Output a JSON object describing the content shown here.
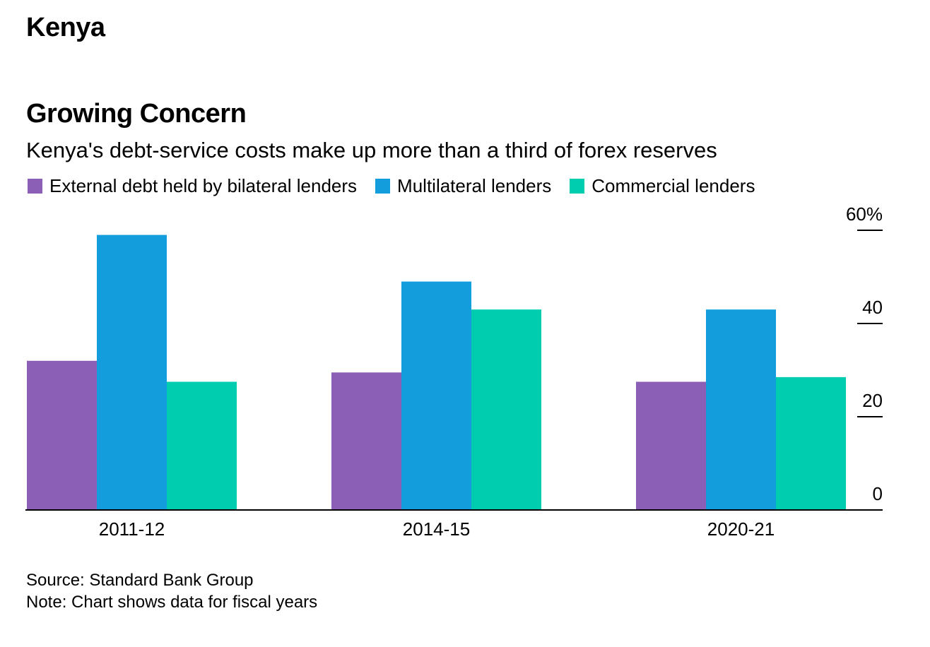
{
  "header": {
    "label": "Kenya"
  },
  "chart_data": {
    "type": "bar",
    "title": "Growing Concern",
    "subtitle": "Kenya's debt-service costs make up more than a third of forex reserves",
    "categories": [
      "2011-12",
      "2014-15",
      "2020-21"
    ],
    "series": [
      {
        "name": "External debt held by bilateral lenders",
        "color": "#8a5fb5",
        "values": [
          32,
          29.5,
          27.5
        ]
      },
      {
        "name": "Multilateral lenders",
        "color": "#149ddc",
        "values": [
          59,
          49,
          43
        ]
      },
      {
        "name": "Commercial lenders",
        "color": "#00cdb0",
        "values": [
          27.5,
          43,
          28.5
        ]
      }
    ],
    "ylim": [
      0,
      60
    ],
    "yticks": [
      0,
      20,
      40,
      60
    ],
    "ytick_labels": [
      "0",
      "20",
      "40",
      "60%"
    ],
    "xlabel": "",
    "ylabel": "",
    "grid": false,
    "legend_position": "top-left",
    "axis_position": "right"
  },
  "footer": {
    "source": "Source: Standard Bank Group",
    "note": "Note: Chart shows data for fiscal years"
  }
}
